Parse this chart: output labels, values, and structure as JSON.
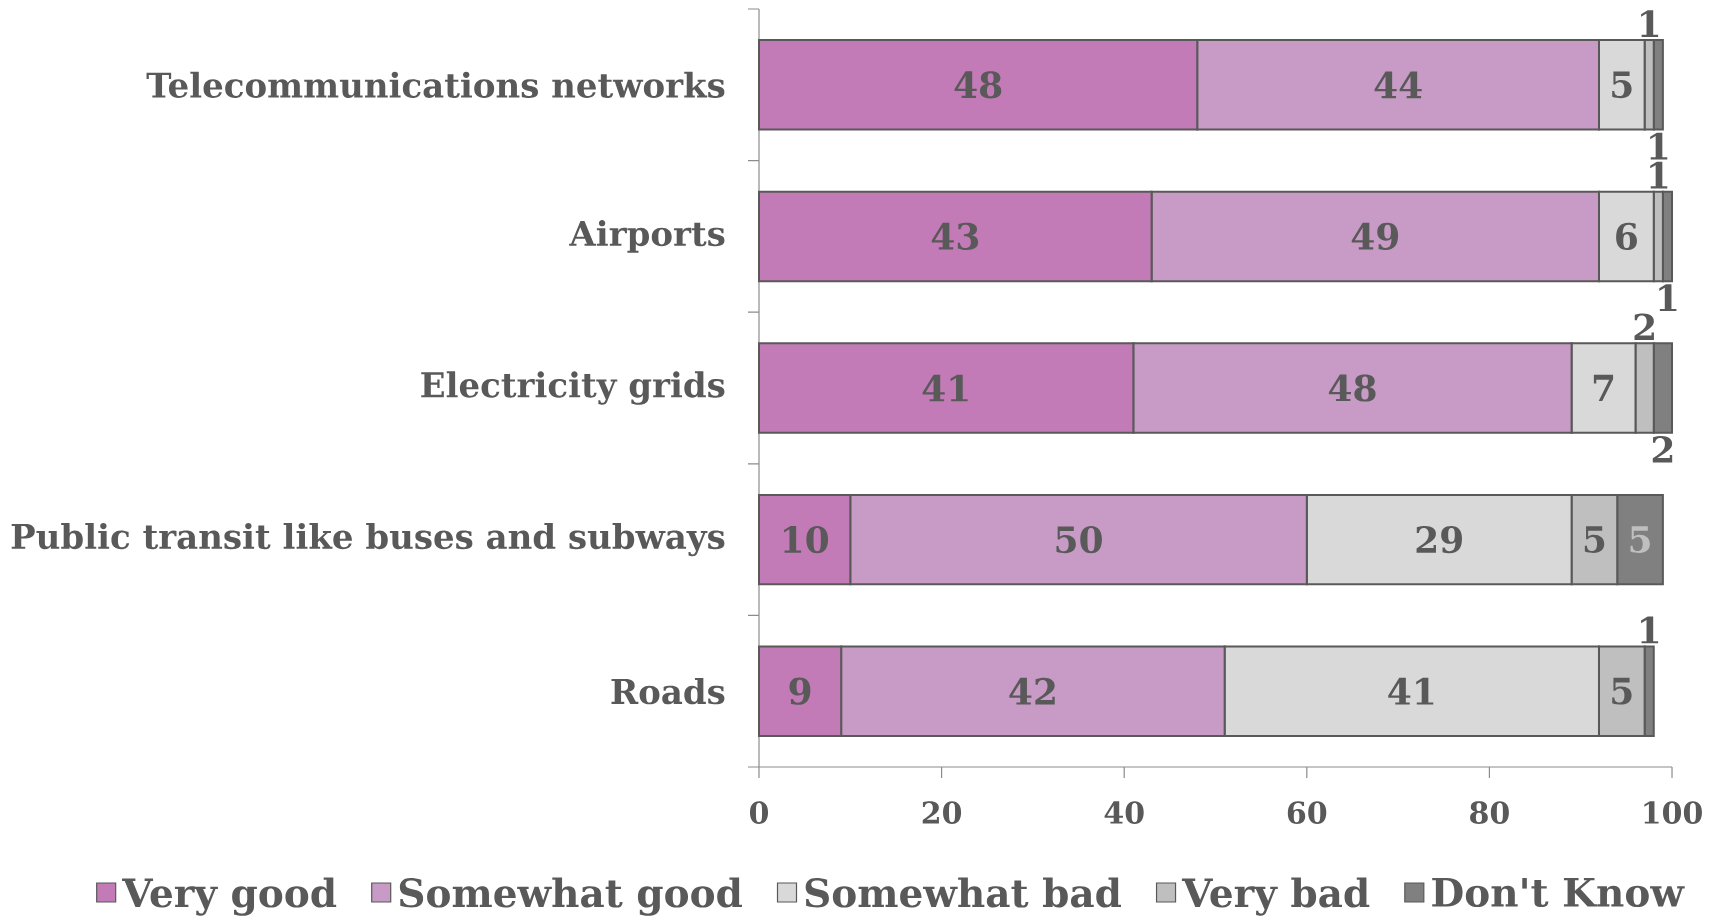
{
  "chart_data": {
    "type": "bar",
    "orientation": "horizontal",
    "stacked": true,
    "categories": [
      "Telecommunications networks",
      "Airports",
      "Electricity grids",
      "Public transit like buses and subways",
      "Roads"
    ],
    "series": [
      {
        "name": "Very good",
        "color": "#c27bb6",
        "values": [
          48,
          43,
          41,
          10,
          9
        ]
      },
      {
        "name": "Somewhat good",
        "color": "#c89bc6",
        "values": [
          44,
          49,
          48,
          50,
          42
        ]
      },
      {
        "name": "Somewhat bad",
        "color": "#d9d9d9",
        "values": [
          5,
          6,
          7,
          29,
          41
        ]
      },
      {
        "name": "Very bad",
        "color": "#bfbfbf",
        "values": [
          1,
          1,
          2,
          5,
          5
        ]
      },
      {
        "name": "Don't Know",
        "color": "#808080",
        "values": [
          1,
          1,
          2,
          5,
          1
        ]
      }
    ],
    "xlim": [
      0,
      100
    ],
    "xticks": [
      0,
      20,
      40,
      60,
      80,
      100
    ],
    "data_labels": true,
    "legend": "bottom"
  }
}
